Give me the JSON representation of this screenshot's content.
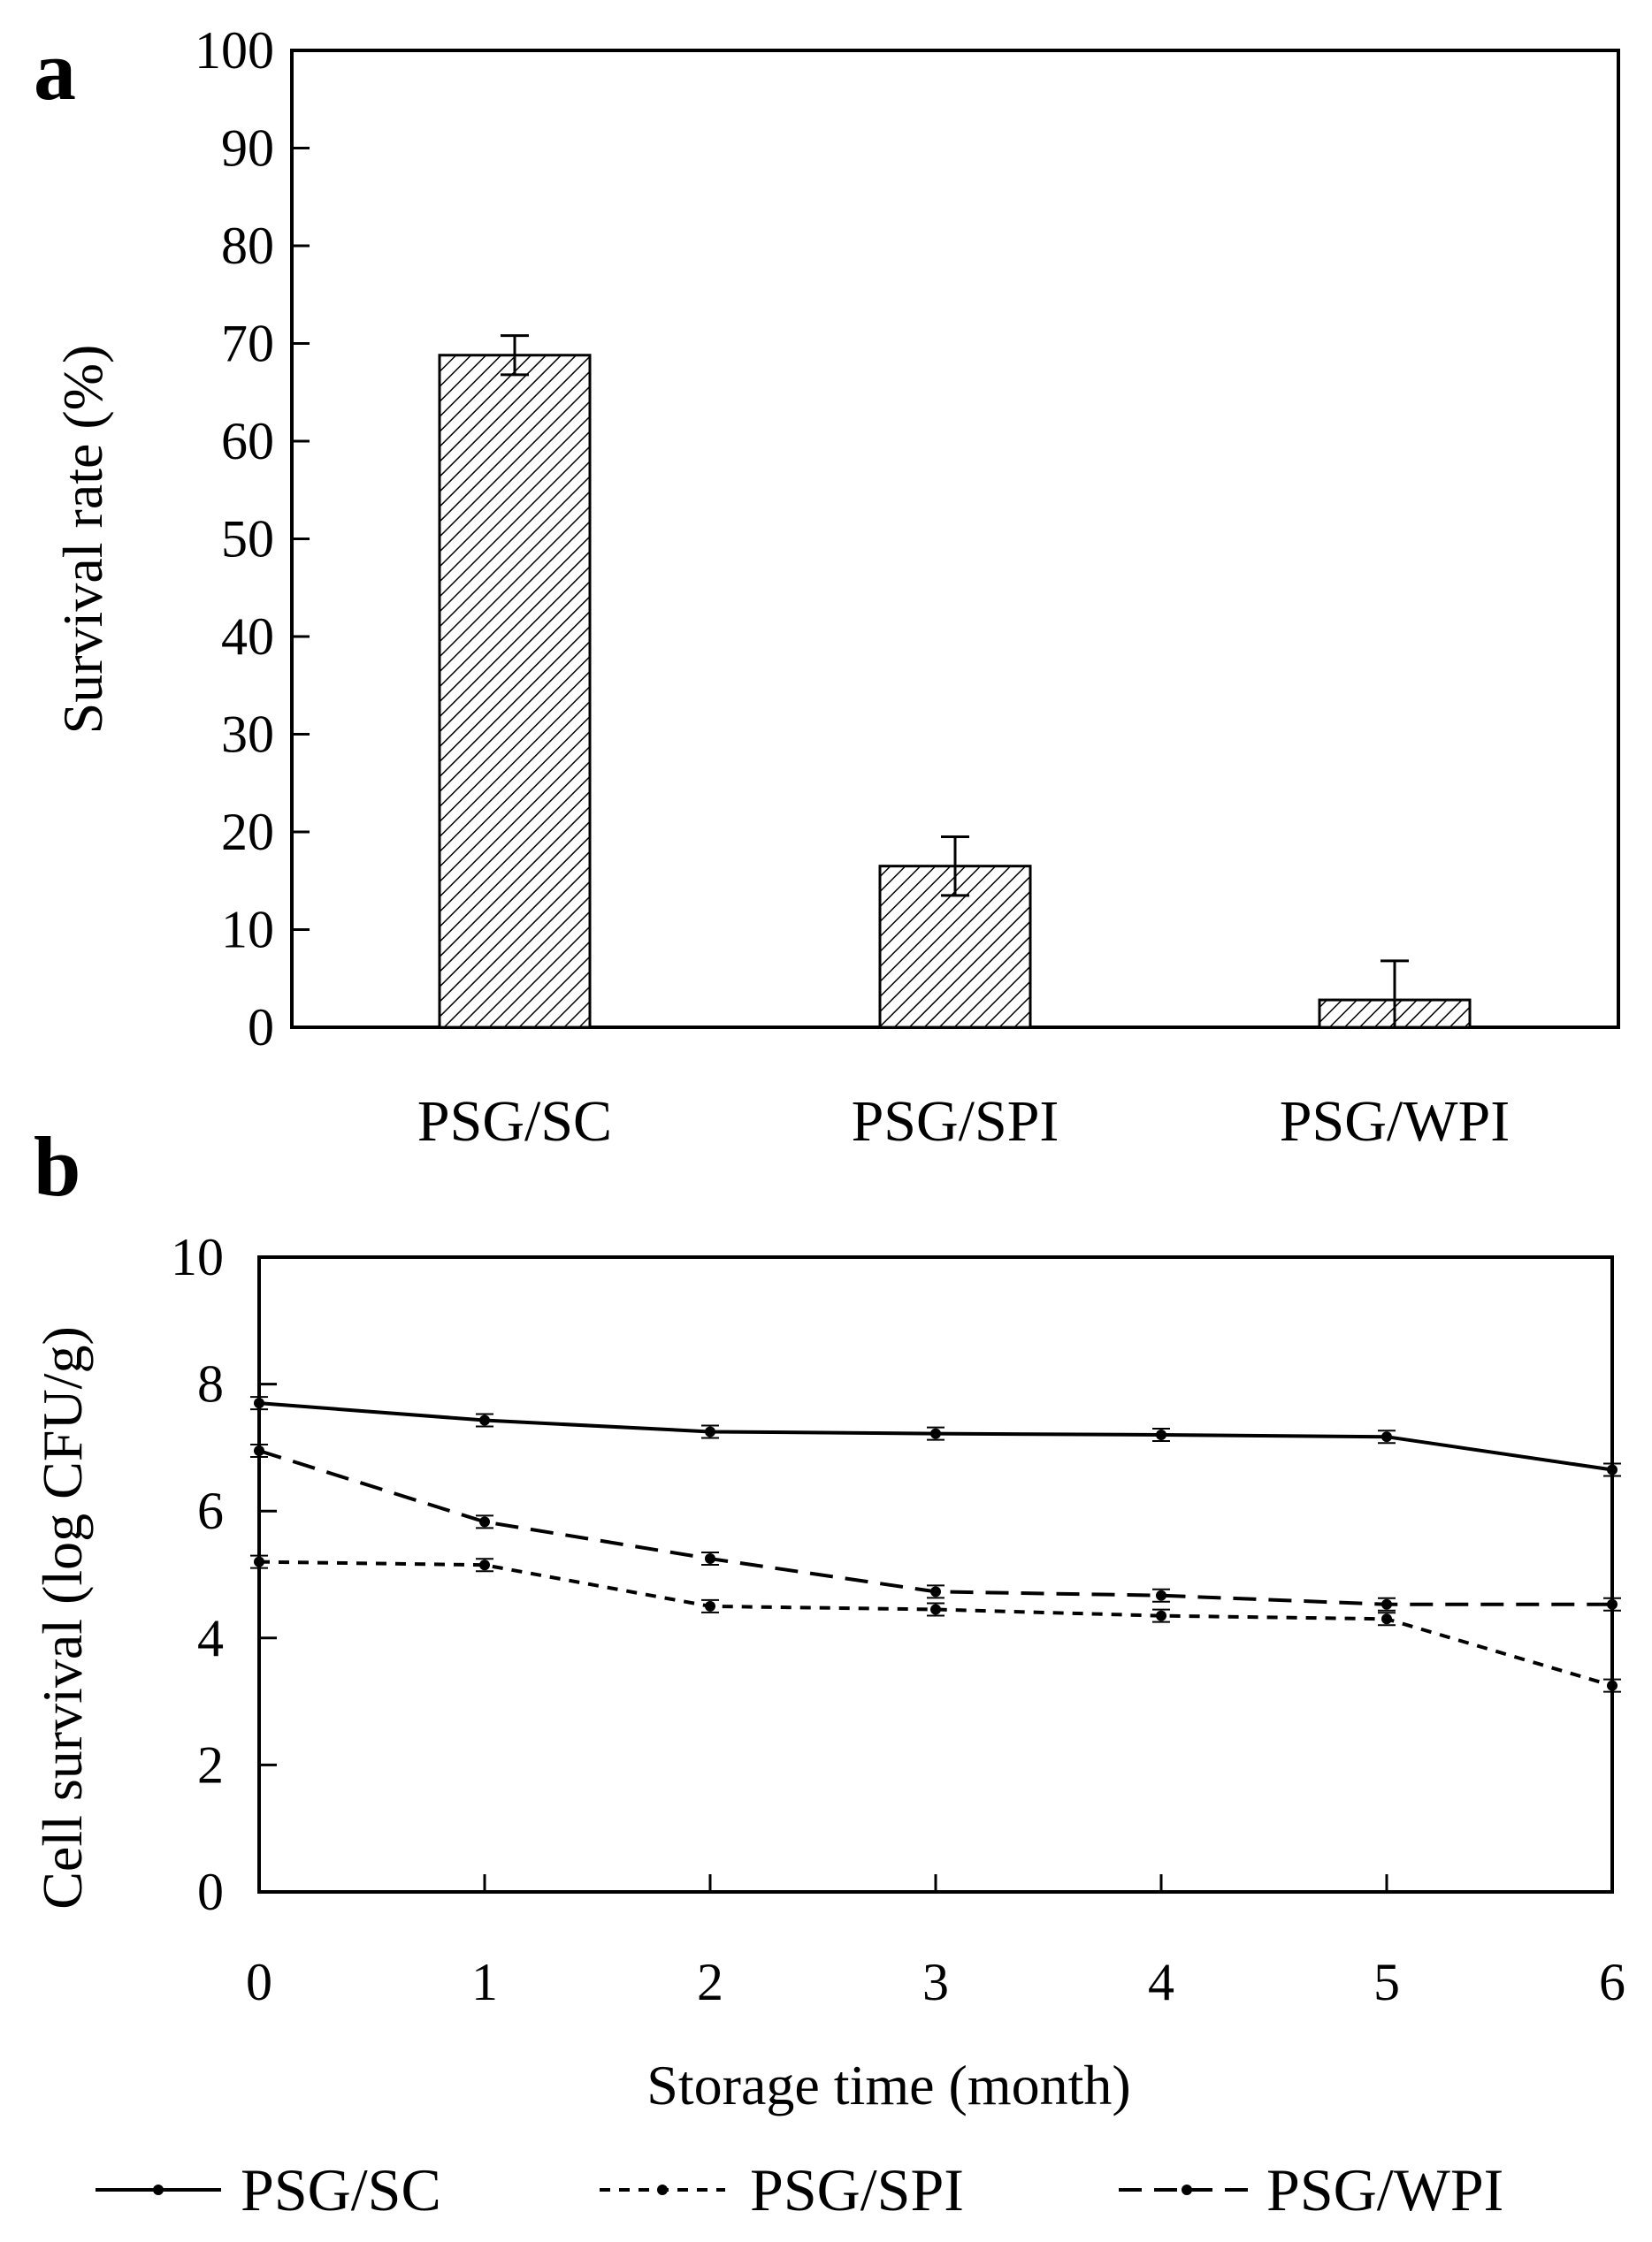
{
  "chart_data": [
    {
      "panel": "a",
      "type": "bar",
      "title": "",
      "xlabel": "",
      "ylabel": "Survival rate (%)",
      "ylim": [
        0,
        100
      ],
      "yticks": [
        "0",
        "10",
        "20",
        "30",
        "40",
        "50",
        "60",
        "70",
        "80",
        "90",
        "100"
      ],
      "categories": [
        "PSG/SC",
        "PSG/SPI",
        "PSG/WPI"
      ],
      "values": [
        68.8,
        16.5,
        2.8
      ],
      "errors": [
        2.0,
        3.0,
        4.0
      ],
      "fill": "diagonal-hatch"
    },
    {
      "panel": "b",
      "type": "line",
      "title": "",
      "xlabel": "Storage time (month)",
      "ylabel": "Cell survival (log CFU/g)",
      "xlim": [
        0,
        6
      ],
      "ylim": [
        0,
        10
      ],
      "xticks": [
        "0",
        "1",
        "2",
        "3",
        "4",
        "5",
        "6"
      ],
      "yticks": [
        "0",
        "2",
        "4",
        "6",
        "8",
        "10"
      ],
      "x": [
        0,
        1,
        2,
        3,
        4,
        5,
        6
      ],
      "series": [
        {
          "name": "PSG/SC",
          "style": "solid",
          "values": [
            7.7,
            7.43,
            7.25,
            7.22,
            7.2,
            7.17,
            6.65
          ]
        },
        {
          "name": "PSG/SPI",
          "style": "dotted",
          "values": [
            5.2,
            5.15,
            4.5,
            4.45,
            4.35,
            4.3,
            3.25
          ]
        },
        {
          "name": "PSG/WPI",
          "style": "dashed",
          "values": [
            6.95,
            5.83,
            5.25,
            4.73,
            4.67,
            4.53,
            4.53
          ]
        }
      ],
      "legend_position": "bottom"
    }
  ],
  "colors": {
    "line": "#000000",
    "background": "#ffffff"
  }
}
